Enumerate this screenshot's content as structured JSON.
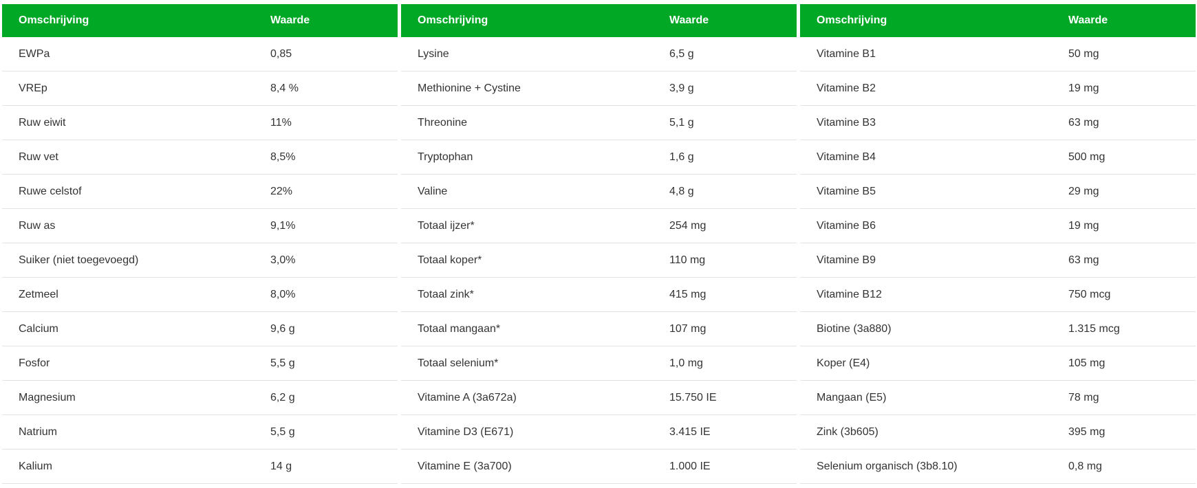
{
  "colors": {
    "header_bg": "#00a826",
    "header_text": "#ffffff",
    "divider": "#e2e2e2"
  },
  "tables": [
    {
      "headers": [
        "Omschrijving",
        "Waarde"
      ],
      "rows": [
        [
          "EWPa",
          "0,85"
        ],
        [
          "VREp",
          "8,4 %"
        ],
        [
          "Ruw eiwit",
          "11%"
        ],
        [
          "Ruw vet",
          "8,5%"
        ],
        [
          "Ruwe celstof",
          "22%"
        ],
        [
          "Ruw as",
          "9,1%"
        ],
        [
          "Suiker (niet toegevoegd)",
          "3,0%"
        ],
        [
          "Zetmeel",
          "8,0%"
        ],
        [
          "Calcium",
          "9,6 g"
        ],
        [
          "Fosfor",
          "5,5 g"
        ],
        [
          "Magnesium",
          "6,2 g"
        ],
        [
          "Natrium",
          "5,5 g"
        ],
        [
          "Kalium",
          "14 g"
        ]
      ]
    },
    {
      "headers": [
        "Omschrijving",
        "Waarde"
      ],
      "rows": [
        [
          "Lysine",
          "6,5 g"
        ],
        [
          "Methionine + Cystine",
          "3,9 g"
        ],
        [
          "Threonine",
          "5,1 g"
        ],
        [
          "Tryptophan",
          "1,6 g"
        ],
        [
          "Valine",
          "4,8 g"
        ],
        [
          "Totaal ijzer*",
          "254 mg"
        ],
        [
          "Totaal koper*",
          "110 mg"
        ],
        [
          "Totaal zink*",
          "415 mg"
        ],
        [
          "Totaal mangaan*",
          "107 mg"
        ],
        [
          "Totaal selenium*",
          " 1,0 mg"
        ],
        [
          "Vitamine A (3a672a)",
          "15.750 IE"
        ],
        [
          "Vitamine D3 (E671)",
          "3.415 IE"
        ],
        [
          "Vitamine E (3a700)",
          "1.000 IE"
        ]
      ]
    },
    {
      "headers": [
        "Omschrijving",
        "Waarde"
      ],
      "rows": [
        [
          "Vitamine B1",
          "50 mg"
        ],
        [
          "Vitamine B2",
          "19 mg"
        ],
        [
          "Vitamine B3",
          "63 mg"
        ],
        [
          "Vitamine B4",
          "500 mg"
        ],
        [
          "Vitamine B5",
          "29 mg"
        ],
        [
          "Vitamine B6",
          "19 mg"
        ],
        [
          "Vitamine B9",
          "63 mg"
        ],
        [
          "Vitamine B12",
          "750 mcg"
        ],
        [
          "Biotine (3a880)",
          "1.315 mcg"
        ],
        [
          "Koper (E4)",
          "105 mg"
        ],
        [
          "Mangaan (E5)",
          "78 mg"
        ],
        [
          "Zink (3b605)",
          "395 mg"
        ],
        [
          "Selenium organisch (3b8.10)",
          "0,8 mg"
        ]
      ]
    }
  ]
}
